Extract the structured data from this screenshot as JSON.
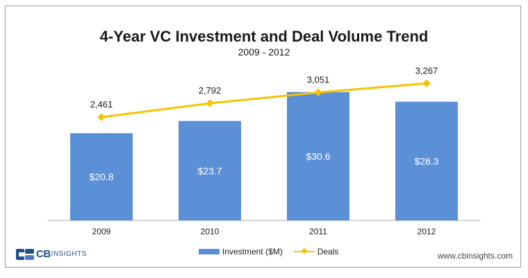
{
  "chart_data": {
    "type": "bar",
    "title": "4-Year VC Investment and Deal Volume Trend",
    "subtitle": "2009 - 2012",
    "categories": [
      "2009",
      "2010",
      "2011",
      "2012"
    ],
    "series": [
      {
        "name": "Investment ($M)",
        "kind": "bar",
        "values": [
          20.8,
          23.7,
          30.6,
          28.3
        ],
        "labels": [
          "$20.8",
          "$23.7",
          "$30.6",
          "$28.3"
        ],
        "color": "#5b8fd6"
      },
      {
        "name": "Deals",
        "kind": "line",
        "values": [
          2461,
          2792,
          3051,
          3267
        ],
        "labels": [
          "2,461",
          "2,792",
          "3,051",
          "3,267"
        ],
        "color": "#f5c400"
      }
    ],
    "bar_ylim": [
      0,
      38
    ],
    "line_ylim": [
      0,
      3800
    ],
    "legend": "bottom-center",
    "grid": false
  },
  "branding": {
    "logo_cb": "CB",
    "logo_insights": "INSIGHTS",
    "website": "www.cbinsights.com"
  }
}
